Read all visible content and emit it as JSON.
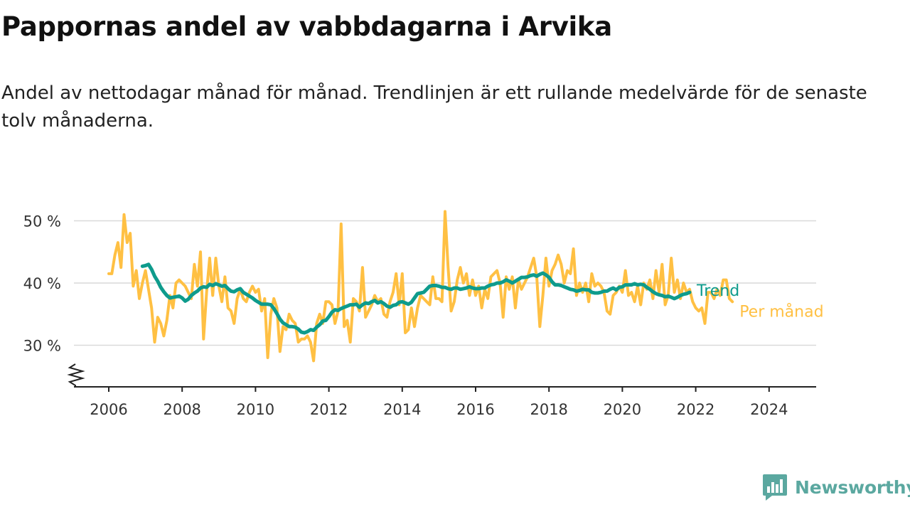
{
  "title": "Pappornas andel av vabbdagarna i Arvika",
  "subtitle": "Andel av nettodagar månad för månad. Trendlinjen är ett rullande medelvärde för de senaste tolv månaderna.",
  "brand": {
    "name": "Newsworthy",
    "color": "#5ba8a0",
    "icon": "newsworthy-logo-icon"
  },
  "colors": {
    "monthly": "#ffc043",
    "trend": "#0e9b8c",
    "grid": "#d9d9d9",
    "axis": "#222222",
    "text": "#333333"
  },
  "chart_data": {
    "type": "line",
    "title": "Pappornas andel av vabbdagarna i Arvika",
    "y_unit": "%",
    "ylim": [
      22,
      52
    ],
    "y_ticks": [
      30,
      40,
      50
    ],
    "y_tick_labels": [
      "30 %",
      "40 %",
      "50 %"
    ],
    "y_axis_break": true,
    "xlim": [
      2005.0,
      2025.3
    ],
    "x_ticks": [
      2006,
      2008,
      2010,
      2012,
      2014,
      2016,
      2018,
      2020,
      2022,
      2024
    ],
    "x_tick_labels": [
      "2006",
      "2008",
      "2010",
      "2012",
      "2014",
      "2016",
      "2018",
      "2020",
      "2022",
      "2024"
    ],
    "grid": "horizontal",
    "legend": "inline labels at line ends",
    "series": [
      {
        "name": "Per månad",
        "color": "#ffc043",
        "start": "2006-01",
        "values": [
          41.5,
          41.5,
          44.5,
          46.5,
          42.5,
          51.0,
          46.5,
          48.0,
          39.5,
          42.0,
          37.5,
          40.0,
          42.0,
          39.0,
          36.0,
          30.5,
          34.5,
          33.5,
          31.5,
          34.0,
          38.0,
          36.0,
          40.0,
          40.5,
          40.0,
          39.5,
          38.5,
          37.5,
          43.0,
          39.5,
          45.0,
          31.0,
          38.5,
          44.0,
          38.0,
          44.0,
          39.5,
          37.0,
          41.0,
          36.0,
          35.5,
          33.5,
          37.5,
          39.0,
          37.5,
          37.0,
          38.5,
          39.5,
          38.5,
          39.0,
          35.5,
          37.5,
          28.0,
          35.0,
          37.5,
          36.0,
          29.0,
          33.0,
          32.5,
          35.0,
          34.0,
          33.5,
          30.5,
          31.0,
          31.0,
          31.5,
          30.5,
          27.5,
          33.5,
          35.0,
          33.5,
          37.0,
          37.0,
          36.5,
          33.5,
          35.5,
          49.5,
          33.0,
          34.0,
          30.5,
          37.5,
          37.0,
          35.5,
          42.5,
          34.5,
          35.5,
          36.5,
          38.0,
          37.0,
          37.5,
          35.0,
          34.5,
          37.0,
          38.5,
          41.5,
          36.5,
          41.5,
          32.0,
          32.5,
          36.0,
          33.0,
          36.0,
          38.0,
          37.5,
          37.0,
          36.5,
          41.0,
          37.5,
          37.5,
          37.0,
          51.5,
          42.5,
          35.5,
          37.0,
          40.5,
          42.5,
          40.0,
          41.5,
          38.0,
          40.5,
          38.0,
          39.5,
          36.0,
          39.0,
          37.5,
          41.0,
          41.5,
          42.0,
          40.0,
          34.5,
          41.0,
          39.0,
          41.0,
          36.0,
          40.5,
          39.0,
          40.0,
          41.0,
          42.5,
          44.0,
          41.0,
          33.0,
          38.0,
          44.0,
          39.5,
          42.0,
          43.0,
          44.5,
          43.0,
          40.0,
          42.0,
          41.5,
          45.5,
          38.0,
          40.0,
          38.5,
          40.0,
          37.0,
          41.5,
          39.5,
          40.0,
          39.5,
          38.5,
          35.5,
          35.0,
          38.0,
          38.5,
          39.5,
          38.5,
          42.0,
          38.0,
          38.5,
          37.0,
          39.5,
          36.5,
          40.0,
          39.0,
          40.5,
          37.5,
          42.0,
          38.5,
          43.0,
          36.5,
          38.0,
          44.0,
          38.5,
          40.5,
          37.5,
          40.0,
          38.5,
          39.0,
          37.0,
          36.0,
          35.5,
          36.0,
          33.5,
          38.5,
          38.5,
          37.5,
          39.0,
          38.0,
          40.5,
          40.5,
          37.5,
          37.0
        ]
      },
      {
        "name": "Trend",
        "color": "#0e9b8c",
        "start": "2006-12",
        "values": [
          42.7,
          42.8,
          43.0,
          42.2,
          41.1,
          40.3,
          39.3,
          38.6,
          38.0,
          37.6,
          37.7,
          37.8,
          37.9,
          37.6,
          37.1,
          37.4,
          38.0,
          38.4,
          38.7,
          39.2,
          39.4,
          39.3,
          39.8,
          39.6,
          39.9,
          39.7,
          39.5,
          39.6,
          39.1,
          38.7,
          38.6,
          38.9,
          39.1,
          38.5,
          38.2,
          37.9,
          37.6,
          37.2,
          36.9,
          36.6,
          36.6,
          36.6,
          36.5,
          35.9,
          35.1,
          34.2,
          33.6,
          33.3,
          33.0,
          33.0,
          32.9,
          32.6,
          32.1,
          32.0,
          32.2,
          32.5,
          32.4,
          32.9,
          33.3,
          33.9,
          34.0,
          34.6,
          35.3,
          35.7,
          35.6,
          35.9,
          36.1,
          36.3,
          36.5,
          36.5,
          36.6,
          36.1,
          36.5,
          36.8,
          36.7,
          37.0,
          37.2,
          36.8,
          37.0,
          36.7,
          36.3,
          36.1,
          36.4,
          36.5,
          36.9,
          37.0,
          36.8,
          36.6,
          36.9,
          37.6,
          38.3,
          38.4,
          38.5,
          39.0,
          39.5,
          39.6,
          39.6,
          39.5,
          39.3,
          39.3,
          39.1,
          39.0,
          39.2,
          39.2,
          39.0,
          39.1,
          39.2,
          39.4,
          39.2,
          39.1,
          39.1,
          39.2,
          39.2,
          39.5,
          39.7,
          39.8,
          40.0,
          40.0,
          40.2,
          40.5,
          40.3,
          40.0,
          40.3,
          40.6,
          40.9,
          40.9,
          41.0,
          41.2,
          41.3,
          41.1,
          41.4,
          41.6,
          41.3,
          40.9,
          40.2,
          39.7,
          39.7,
          39.6,
          39.4,
          39.2,
          39.0,
          38.9,
          38.7,
          38.8,
          39.0,
          38.9,
          38.9,
          38.5,
          38.4,
          38.4,
          38.5,
          38.7,
          38.7,
          39.0,
          39.2,
          38.9,
          39.3,
          39.4,
          39.7,
          39.7,
          39.7,
          39.9,
          39.7,
          39.8,
          39.7,
          39.3,
          39.0,
          38.6,
          38.3,
          38.1,
          38.0,
          37.8,
          37.9,
          37.7,
          37.5,
          37.7,
          38.0,
          38.2,
          38.3,
          38.5
        ]
      }
    ]
  }
}
